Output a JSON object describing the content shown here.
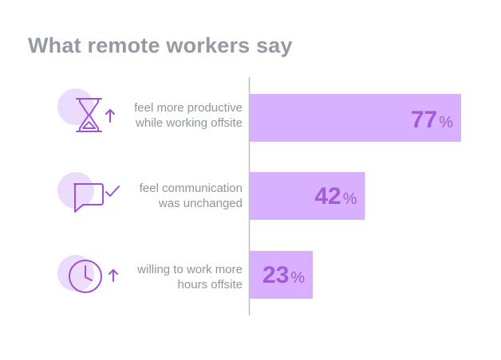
{
  "title": "What remote workers say",
  "chart_data": {
    "type": "bar",
    "orientation": "horizontal",
    "unit": "%",
    "categories": [
      [
        "feel more productive",
        "while working offsite"
      ],
      [
        "feel communication",
        "was unchanged"
      ],
      [
        "willing to work more",
        "hours offsite"
      ]
    ],
    "values": [
      77,
      42,
      23
    ],
    "xlim": [
      0,
      77
    ],
    "grid": false,
    "legend": "none",
    "icons": [
      "hourglass-arrow-up-icon",
      "speech-bubble-check-icon",
      "clock-arrow-up-icon"
    ]
  },
  "colors": {
    "bar": "#d8b0ff",
    "value": "#a15cd8",
    "icon_stroke": "#a04fd6",
    "icon_circle": "#ecdcfb",
    "label": "#8f959c",
    "axis": "#b9bec3",
    "title": "#949aa1"
  }
}
